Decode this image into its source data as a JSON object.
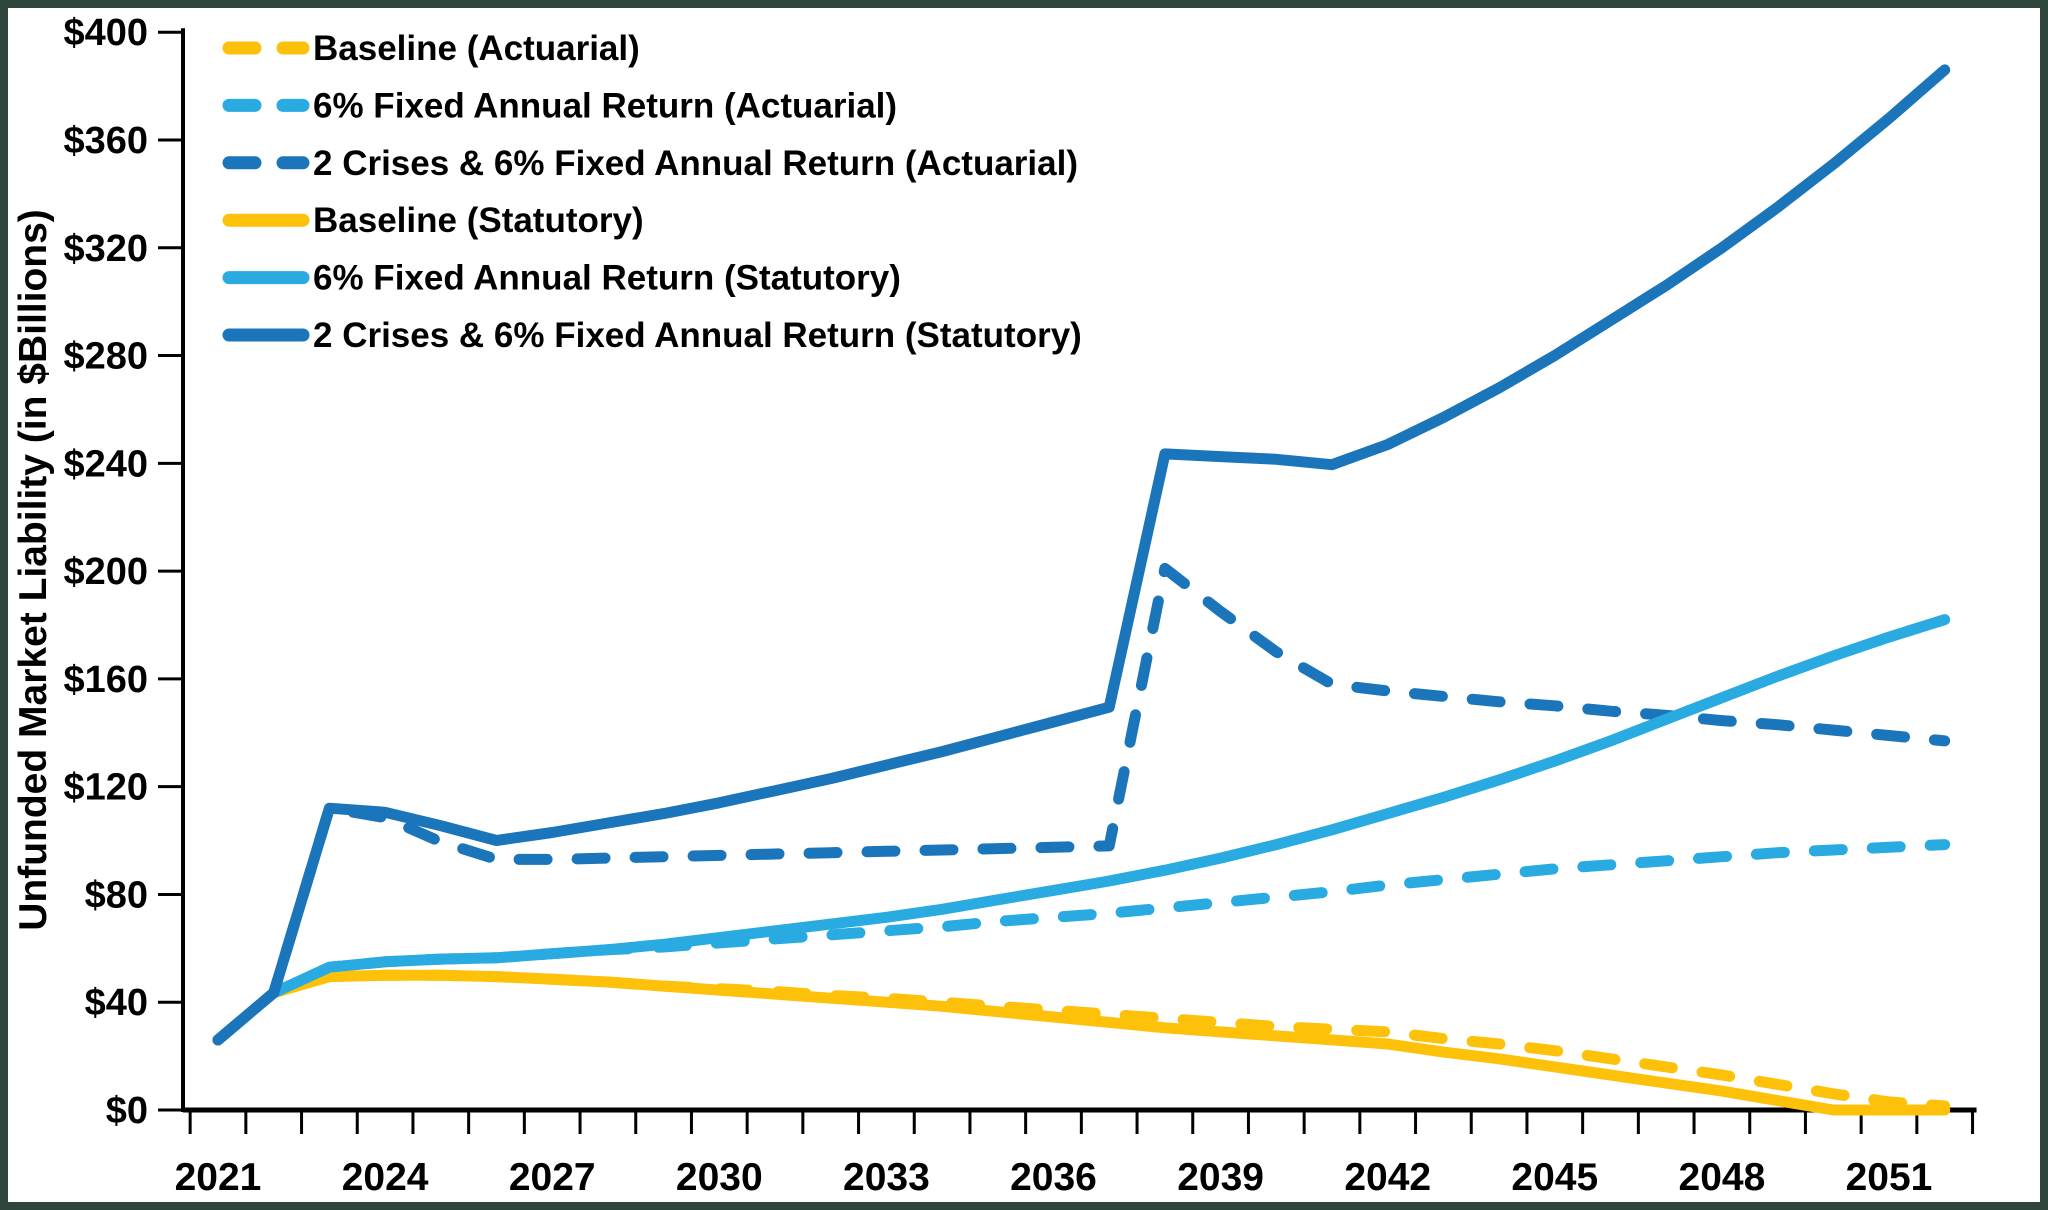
{
  "figure": {
    "border_color": "#2F463C",
    "background_color": "#FFFFFF",
    "axis_color": "#000000",
    "text_color": "#000000"
  },
  "chart_data": {
    "type": "line",
    "title": "",
    "xlabel": "",
    "ylabel": "Unfunded Market Liability (in $Billions)",
    "grid": false,
    "legend_position": "top-left-inside",
    "xlim": [
      2020.5,
      2052.5
    ],
    "ylim": [
      0,
      400
    ],
    "y_ticks": [
      0,
      40,
      80,
      120,
      160,
      200,
      240,
      280,
      320,
      360,
      400
    ],
    "y_tick_prefix": "$",
    "x_tick_labels": [
      "2021",
      "2024",
      "2027",
      "2030",
      "2033",
      "2036",
      "2039",
      "2042",
      "2045",
      "2048",
      "2051"
    ],
    "x": [
      2021,
      2022,
      2023,
      2024,
      2025,
      2026,
      2027,
      2028,
      2029,
      2030,
      2031,
      2032,
      2033,
      2034,
      2035,
      2036,
      2037,
      2038,
      2039,
      2040,
      2041,
      2042,
      2043,
      2044,
      2045,
      2046,
      2047,
      2048,
      2049,
      2050,
      2051,
      2052
    ],
    "series": [
      {
        "name": "Baseline (Actuarial)",
        "style": "dashed",
        "color": "#FEC10A",
        "values": [
          26,
          43.5,
          49.5,
          50,
          50,
          49.5,
          48.5,
          47.5,
          46,
          45,
          44,
          42.5,
          41.5,
          40,
          38.5,
          37,
          35.5,
          34,
          32.5,
          31,
          30,
          29,
          26.5,
          24.5,
          22,
          19,
          16,
          13,
          9.5,
          6,
          3,
          1.5
        ]
      },
      {
        "name": "6% Fixed Annual Return (Actuarial)",
        "style": "dashed",
        "color": "#29AAE1",
        "values": [
          26,
          43.5,
          53,
          55,
          56,
          56.5,
          58,
          59.5,
          60.5,
          62,
          63.5,
          65,
          66.5,
          68,
          70,
          71.5,
          73,
          75,
          77,
          79,
          81,
          83.5,
          85.5,
          87.5,
          89.5,
          91,
          92.5,
          94,
          95.5,
          96.5,
          97.5,
          98.5
        ]
      },
      {
        "name": "2 Crises & 6% Fixed Annual Return (Actuarial)",
        "style": "dashed",
        "color": "#1B75BB",
        "values": [
          26,
          43.5,
          112,
          108.5,
          99.5,
          93,
          93,
          93.5,
          94,
          94.5,
          95,
          95.5,
          96,
          96.5,
          97,
          97.5,
          98,
          201,
          185,
          170,
          158,
          155.5,
          153.5,
          151.5,
          150,
          148,
          146.5,
          144.5,
          143,
          141,
          139,
          137
        ]
      },
      {
        "name": "Baseline (Statutory)",
        "style": "solid",
        "color": "#FEC10A",
        "values": [
          26,
          43.5,
          49.5,
          50,
          50,
          49.5,
          48.5,
          47.5,
          46,
          44.5,
          43,
          41.5,
          40,
          38.5,
          36.5,
          34.5,
          32.5,
          30.5,
          29,
          27.5,
          26,
          24.5,
          21.5,
          19,
          16,
          13,
          10,
          7,
          3.5,
          0,
          0,
          0
        ]
      },
      {
        "name": "6% Fixed Annual Return (Statutory)",
        "style": "solid",
        "color": "#29AAE1",
        "values": [
          26,
          43.5,
          53,
          55,
          56,
          56.5,
          58,
          59.5,
          61.5,
          64,
          66.5,
          69,
          71.5,
          74.5,
          78,
          81.5,
          85,
          89,
          93.5,
          98.5,
          104,
          110,
          116,
          122.5,
          129.5,
          137,
          145,
          153,
          161,
          168.5,
          175.5,
          182
        ]
      },
      {
        "name": "2 Crises & 6% Fixed Annual Return (Statutory)",
        "style": "solid",
        "color": "#1B75BB",
        "values": [
          26,
          43.5,
          112,
          110.5,
          105.5,
          100,
          103,
          106.5,
          110,
          114,
          118.5,
          123,
          128,
          133,
          138.5,
          144,
          149.5,
          243.5,
          242.5,
          241.5,
          239.5,
          247,
          257,
          268,
          280,
          293,
          306,
          320,
          335,
          351,
          368,
          386
        ]
      }
    ]
  }
}
